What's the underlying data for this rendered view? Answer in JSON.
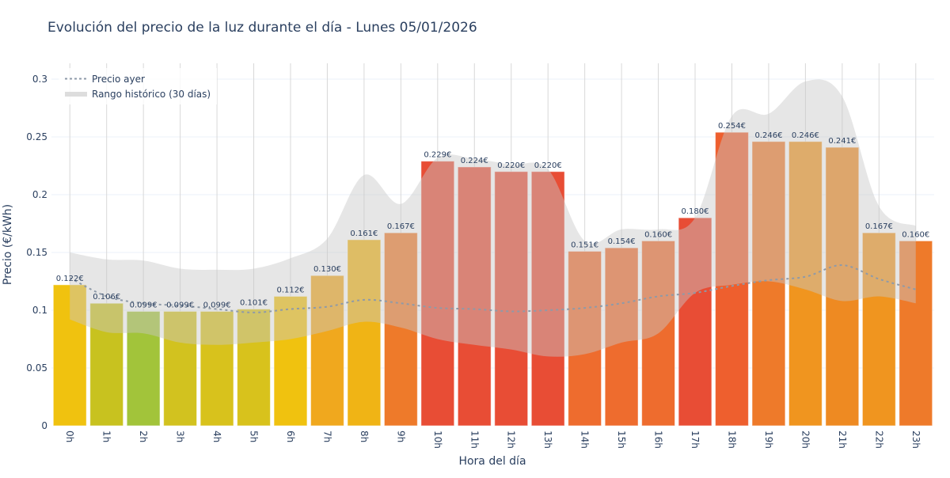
{
  "chart_data": {
    "type": "bar",
    "title": "Evolución del precio de la luz durante el día - Lunes 05/01/2026",
    "xlabel": "Hora del día",
    "ylabel": "Precio (€/kWh)",
    "ylim": [
      0,
      0.3137
    ],
    "yticks": [
      0,
      0.05,
      0.1,
      0.15,
      0.2,
      0.25,
      0.3
    ],
    "ytick_labels": [
      "0",
      "0.05",
      "0.1",
      "0.15",
      "0.2",
      "0.25",
      "0.3"
    ],
    "grid": true,
    "legend_position": "top-left",
    "categories": [
      "0h",
      "1h",
      "2h",
      "3h",
      "4h",
      "5h",
      "6h",
      "7h",
      "8h",
      "9h",
      "10h",
      "11h",
      "12h",
      "13h",
      "14h",
      "15h",
      "16h",
      "17h",
      "18h",
      "19h",
      "20h",
      "21h",
      "22h",
      "23h"
    ],
    "values": [
      0.122,
      0.106,
      0.099,
      0.099,
      0.099,
      0.101,
      0.112,
      0.13,
      0.161,
      0.167,
      0.229,
      0.224,
      0.22,
      0.22,
      0.151,
      0.154,
      0.16,
      0.18,
      0.254,
      0.246,
      0.246,
      0.241,
      0.167,
      0.16
    ],
    "value_labels": [
      "0.122€",
      "0.106€",
      "0.099€",
      "0.099€",
      "0.099€",
      "0.101€",
      "0.112€",
      "0.130€",
      "0.161€",
      "0.167€",
      "0.229€",
      "0.224€",
      "0.220€",
      "0.220€",
      "0.151€",
      "0.154€",
      "0.160€",
      "0.180€",
      "0.254€",
      "0.246€",
      "0.246€",
      "0.241€",
      "0.167€",
      "0.160€"
    ],
    "bar_colors": [
      "#f0c20f",
      "#c8c21f",
      "#a2c43a",
      "#d2c21f",
      "#d8c21c",
      "#d8c21c",
      "#f0c20f",
      "#f0a81e",
      "#f0b415",
      "#ee7a2a",
      "#e84d35",
      "#e84d35",
      "#e84d35",
      "#e84d35",
      "#ee6c2e",
      "#ee6c2e",
      "#ee6c2e",
      "#e84d35",
      "#ee5f2e",
      "#ee7a2a",
      "#f0951f",
      "#ee8a22",
      "#f0951f",
      "#ee7a2a"
    ],
    "series": [
      {
        "name": "Precio ayer",
        "type": "line",
        "style": "dotted",
        "color": "#8e9aa8",
        "values": [
          0.128,
          0.112,
          0.106,
          0.104,
          0.101,
          0.098,
          0.101,
          0.103,
          0.109,
          0.106,
          0.102,
          0.101,
          0.099,
          0.1,
          0.102,
          0.106,
          0.112,
          0.115,
          0.121,
          0.126,
          0.129,
          0.139,
          0.127,
          0.118
        ]
      },
      {
        "name": "Rango histórico (30 días)",
        "type": "area-band",
        "color": "#c8c8c8",
        "upper": [
          0.15,
          0.144,
          0.143,
          0.136,
          0.135,
          0.136,
          0.145,
          0.162,
          0.217,
          0.192,
          0.232,
          0.231,
          0.226,
          0.222,
          0.16,
          0.17,
          0.17,
          0.18,
          0.268,
          0.27,
          0.298,
          0.285,
          0.19,
          0.173
        ],
        "lower": [
          0.092,
          0.081,
          0.08,
          0.072,
          0.07,
          0.072,
          0.075,
          0.082,
          0.09,
          0.085,
          0.075,
          0.07,
          0.066,
          0.06,
          0.062,
          0.072,
          0.08,
          0.115,
          0.122,
          0.125,
          0.118,
          0.108,
          0.112,
          0.106
        ]
      }
    ]
  }
}
